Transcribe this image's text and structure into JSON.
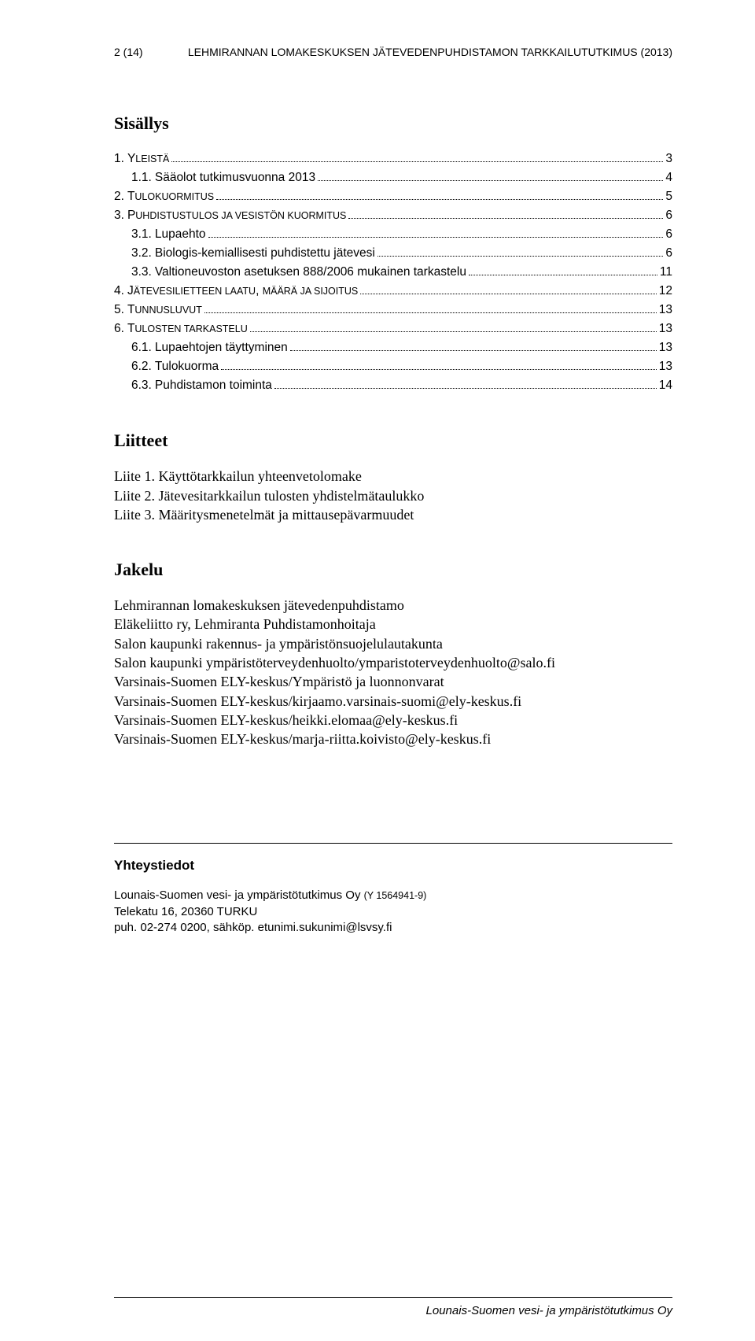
{
  "header": {
    "left": "2 (14)",
    "right": "LEHMIRANNAN LOMAKESKUKSEN JÄTEVEDENPUHDISTAMON TARKKAILUTUTKIMUS (2013)"
  },
  "sisallys": {
    "title": "Sisällys",
    "items": [
      {
        "num": "1.",
        "label_pre": "Y",
        "label_sc": "LEISTÄ",
        "label_post": "",
        "page": "3",
        "sub": false
      },
      {
        "num": "1.1.",
        "label_pre": "Sääolot tutkimusvuonna 2013",
        "label_sc": "",
        "label_post": "",
        "page": "4",
        "sub": true
      },
      {
        "num": "2.",
        "label_pre": "T",
        "label_sc": "ULOKUORMITUS",
        "label_post": "",
        "page": "5",
        "sub": false
      },
      {
        "num": "3.",
        "label_pre": "P",
        "label_sc": "UHDISTUSTULOS JA VESISTÖN KUORMITUS",
        "label_post": "",
        "page": "6",
        "sub": false
      },
      {
        "num": "3.1.",
        "label_pre": "Lupaehto",
        "label_sc": "",
        "label_post": "",
        "page": "6",
        "sub": true
      },
      {
        "num": "3.2.",
        "label_pre": "Biologis-kemiallisesti puhdistettu jätevesi",
        "label_sc": "",
        "label_post": "",
        "page": "6",
        "sub": true
      },
      {
        "num": "3.3.",
        "label_pre": "Valtioneuvoston asetuksen 888/2006 mukainen tarkastelu",
        "label_sc": "",
        "label_post": "",
        "page": "11",
        "sub": true
      },
      {
        "num": "4.",
        "label_pre": "J",
        "label_sc": "ÄTEVESILIETTEEN LAATU",
        "label_post": ", ",
        "label_sc2": "MÄÄRÄ JA SIJOITUS",
        "page": "12",
        "sub": false
      },
      {
        "num": "5.",
        "label_pre": "T",
        "label_sc": "UNNUSLUVUT",
        "label_post": "",
        "page": "13",
        "sub": false
      },
      {
        "num": "6.",
        "label_pre": "T",
        "label_sc": "ULOSTEN TARKASTELU",
        "label_post": "",
        "page": "13",
        "sub": false
      },
      {
        "num": "6.1.",
        "label_pre": "Lupaehtojen täyttyminen",
        "label_sc": "",
        "label_post": "",
        "page": "13",
        "sub": true
      },
      {
        "num": "6.2.",
        "label_pre": "Tulokuorma",
        "label_sc": "",
        "label_post": "",
        "page": "13",
        "sub": true
      },
      {
        "num": "6.3.",
        "label_pre": "Puhdistamon toiminta",
        "label_sc": "",
        "label_post": "",
        "page": "14",
        "sub": true
      }
    ]
  },
  "liitteet": {
    "title": "Liitteet",
    "lines": [
      "Liite 1. Käyttötarkkailun yhteenvetolomake",
      "Liite 2. Jätevesitarkkailun tulosten yhdistelmätaulukko",
      "Liite 3. Määritysmenetelmät ja mittausepävarmuudet"
    ]
  },
  "jakelu": {
    "title": "Jakelu",
    "lines": [
      "Lehmirannan lomakeskuksen jätevedenpuhdistamo",
      "Eläkeliitto ry, Lehmiranta Puhdistamonhoitaja",
      "Salon kaupunki rakennus- ja ympäristönsuojelulautakunta",
      "Salon kaupunki ympäristöterveydenhuolto/ymparistoterveydenhuolto@salo.fi",
      "Varsinais-Suomen ELY-keskus/Ympäristö ja luonnonvarat",
      "Varsinais-Suomen ELY-keskus/kirjaamo.varsinais-suomi@ely-keskus.fi",
      "Varsinais-Suomen ELY-keskus/heikki.elomaa@ely-keskus.fi",
      "Varsinais-Suomen ELY-keskus/marja-riitta.koivisto@ely-keskus.fi"
    ]
  },
  "yhteys": {
    "title": "Yhteystiedot",
    "company_main": "Lounais-Suomen vesi- ja ympäristötutkimus Oy ",
    "company_sub": "(Y 1564941-9)",
    "addr": "Telekatu 16, 20360 TURKU",
    "contact": "puh. 02-274 0200, sähköp. etunimi.sukunimi@lsvsy.fi"
  },
  "footer": "Lounais-Suomen vesi- ja ympäristötutkimus Oy"
}
